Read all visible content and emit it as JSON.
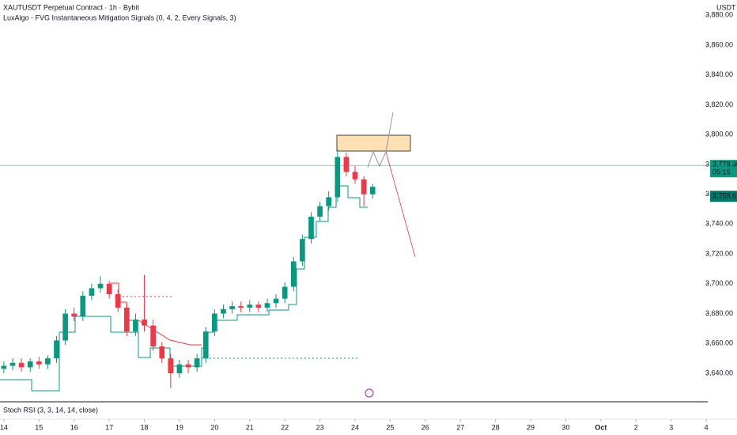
{
  "chart_data": {
    "type": "candlestick",
    "title": "XAUTUSDT Perpetual Contract · 1h · Bybit",
    "subtitle": "LuxAlgo - FVG Instantaneous Mitigation Signals (0, 4, 2, Every Signals, 3)",
    "y_axis_label": "USDT",
    "pane_label": "Stoch RSI (3, 3, 14, 14, close)",
    "up_color": "#089981",
    "down_color": "#f23645",
    "x": [
      0,
      0.25,
      0.5,
      0.75,
      1,
      1.25,
      1.5,
      1.75,
      2,
      2.25,
      2.5,
      2.75,
      3,
      3.25,
      3.5,
      3.75,
      4,
      4.25,
      4.5,
      4.75,
      5,
      5.25,
      5.5,
      5.75,
      6,
      6.25,
      6.5,
      6.75,
      7,
      7.25,
      7.5,
      7.75,
      8,
      8.25,
      8.5,
      8.75,
      9,
      9.25,
      9.5,
      9.75,
      10,
      10.25,
      10.5
    ],
    "open": [
      3643,
      3645,
      3647,
      3644,
      3648,
      3646,
      3650,
      3662,
      3680,
      3678,
      3692,
      3697,
      3700,
      3693,
      3684,
      3668,
      3676,
      3672,
      3658,
      3650,
      3640,
      3646,
      3644,
      3650,
      3668,
      3680,
      3683,
      3685,
      3684,
      3686,
      3684,
      3687,
      3690,
      3698,
      3715,
      3730,
      3745,
      3752,
      3758,
      3785,
      3775,
      3770,
      3760
    ],
    "high": [
      3648,
      3650,
      3650,
      3650,
      3651,
      3652,
      3665,
      3683,
      3684,
      3695,
      3700,
      3705,
      3702,
      3696,
      3687,
      3680,
      3706,
      3676,
      3661,
      3653,
      3649,
      3649,
      3653,
      3671,
      3683,
      3686,
      3688,
      3688,
      3689,
      3688,
      3690,
      3693,
      3701,
      3718,
      3733,
      3748,
      3755,
      3762,
      3790,
      3788,
      3779,
      3772,
      3767
    ],
    "low": [
      3640,
      3642,
      3641,
      3641,
      3643,
      3643,
      3647,
      3659,
      3675,
      3675,
      3689,
      3694,
      3690,
      3681,
      3665,
      3665,
      3668,
      3655,
      3647,
      3630,
      3637,
      3640,
      3641,
      3647,
      3665,
      3677,
      3680,
      3681,
      3681,
      3681,
      3681,
      3684,
      3687,
      3695,
      3712,
      3727,
      3742,
      3749,
      3755,
      3772,
      3767,
      3752,
      3757
    ],
    "close": [
      3645,
      3647,
      3644,
      3648,
      3646,
      3650,
      3662,
      3680,
      3678,
      3692,
      3697,
      3700,
      3693,
      3684,
      3668,
      3676,
      3672,
      3658,
      3650,
      3640,
      3646,
      3644,
      3650,
      3668,
      3680,
      3683,
      3685,
      3684,
      3686,
      3684,
      3687,
      3690,
      3698,
      3715,
      3730,
      3745,
      3752,
      3758,
      3785,
      3775,
      3770,
      3760,
      3765
    ],
    "xlim": [
      -0.11,
      19.93
    ],
    "xticks": [
      {
        "value": 0,
        "label": "14"
      },
      {
        "value": 1,
        "label": "15"
      },
      {
        "value": 2,
        "label": "16"
      },
      {
        "value": 3,
        "label": "17"
      },
      {
        "value": 4,
        "label": "18"
      },
      {
        "value": 5,
        "label": "19"
      },
      {
        "value": 6,
        "label": "20"
      },
      {
        "value": 7,
        "label": "21"
      },
      {
        "value": 8,
        "label": "22"
      },
      {
        "value": 9,
        "label": "23"
      },
      {
        "value": 10,
        "label": "24"
      },
      {
        "value": 11,
        "label": "25"
      },
      {
        "value": 12,
        "label": "26"
      },
      {
        "value": 13,
        "label": "27"
      },
      {
        "value": 14,
        "label": "28"
      },
      {
        "value": 15,
        "label": "29"
      },
      {
        "value": 16,
        "label": "30"
      },
      {
        "value": 17,
        "label": "Oct"
      },
      {
        "value": 18,
        "label": "2"
      },
      {
        "value": 19,
        "label": "3"
      },
      {
        "value": 20,
        "label": "4"
      }
    ],
    "ylim": [
      3620.9,
      3890.2
    ],
    "yticks": [
      {
        "value": 3640,
        "label": "3,640.00"
      },
      {
        "value": 3660,
        "label": "3,660.00"
      },
      {
        "value": 3680,
        "label": "3,680.00"
      },
      {
        "value": 3700,
        "label": "3,700.00"
      },
      {
        "value": 3720,
        "label": "3,720.00"
      },
      {
        "value": 3740,
        "label": "3,740.00"
      },
      {
        "value": 3760,
        "label": "3,760.00"
      },
      {
        "value": 3780,
        "label": "3,780.00"
      },
      {
        "value": 3800,
        "label": "3,800.00"
      },
      {
        "value": 3820,
        "label": "3,820.00"
      },
      {
        "value": 3840,
        "label": "3,840.00"
      },
      {
        "value": 3860,
        "label": "3,860.00"
      },
      {
        "value": 3880,
        "label": "3,880.00"
      }
    ],
    "last_price": {
      "value": 3779.3,
      "label": "3,779.30"
    },
    "countdown": "05:15",
    "indicator_price": {
      "value": 3758.62,
      "label": "3,758.62"
    }
  }
}
